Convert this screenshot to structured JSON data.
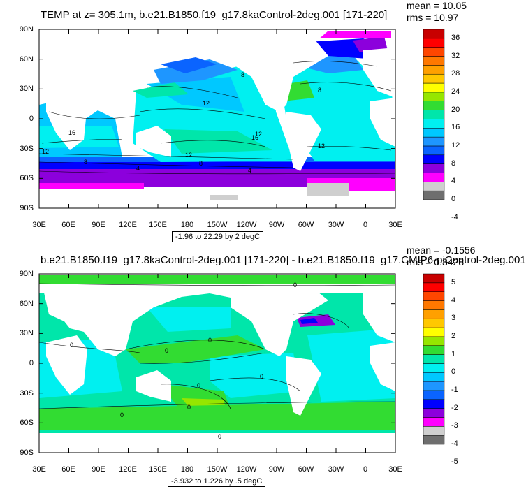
{
  "panel1": {
    "title": "TEMP at z= 305.1m, b.e21.B1850.f19_g17.8kaControl-2deg.001 [171-220]",
    "mean": "mean = 10.05",
    "rms": "rms = 10.97",
    "range": "-1.96 to 22.29 by 2 degC",
    "colorbar_labels": [
      "36",
      "32",
      "28",
      "24",
      "20",
      "16",
      "12",
      "8",
      "4",
      "0",
      "-4"
    ],
    "contour_labels": [
      "8",
      "12",
      "16",
      "12",
      "12",
      "12",
      "16",
      "8",
      "4",
      "8",
      "4",
      "12",
      "8"
    ]
  },
  "panel2": {
    "title": "b.e21.B1850.f19_g17.8kaControl-2deg.001 [171-220] - b.e21.B1850.f19_g17.CMIP6-piControl-2deg.001",
    "mean": "mean = -0.1556",
    "rms": "rms = 0.3428",
    "range": "-3.932 to 1.226 by .5 degC",
    "colorbar_labels": [
      "5",
      "4",
      "3",
      "2",
      "1",
      "0",
      "-1",
      "-2",
      "-3",
      "-4",
      "-5"
    ],
    "contour_labels": [
      "0",
      "0",
      "0",
      "0",
      "0",
      "0",
      "0",
      "0",
      "0"
    ]
  },
  "axes": {
    "lat_labels": [
      "90N",
      "60N",
      "30N",
      "0",
      "30S",
      "60S",
      "90S"
    ],
    "lon_labels": [
      "30E",
      "60E",
      "90E",
      "120E",
      "150E",
      "180",
      "150W",
      "120W",
      "90W",
      "60W",
      "30W",
      "0",
      "30E"
    ]
  },
  "colors": {
    "land": "#ffffff",
    "panel1_scale": [
      "#6e6e6e",
      "#cfcfcf",
      "#ff00ff",
      "#8c00dc",
      "#0000ff",
      "#0a64ff",
      "#1e96ff",
      "#00c8ff",
      "#00f0f0",
      "#00e6aa",
      "#32dc32",
      "#96e600",
      "#ffff00",
      "#ffc800",
      "#ffa000",
      "#ff7800",
      "#ff4600",
      "#ff0000",
      "#c80000"
    ],
    "panel2_scale": [
      "#6e6e6e",
      "#cfcfcf",
      "#ff00ff",
      "#8c00dc",
      "#0000ff",
      "#0a64ff",
      "#1e96ff",
      "#00c8ff",
      "#00f0f0",
      "#00e6aa",
      "#32dc32",
      "#96e600",
      "#ffff00",
      "#ffc800",
      "#ffa000",
      "#ff7800",
      "#ff4600",
      "#ff0000",
      "#c80000"
    ]
  }
}
